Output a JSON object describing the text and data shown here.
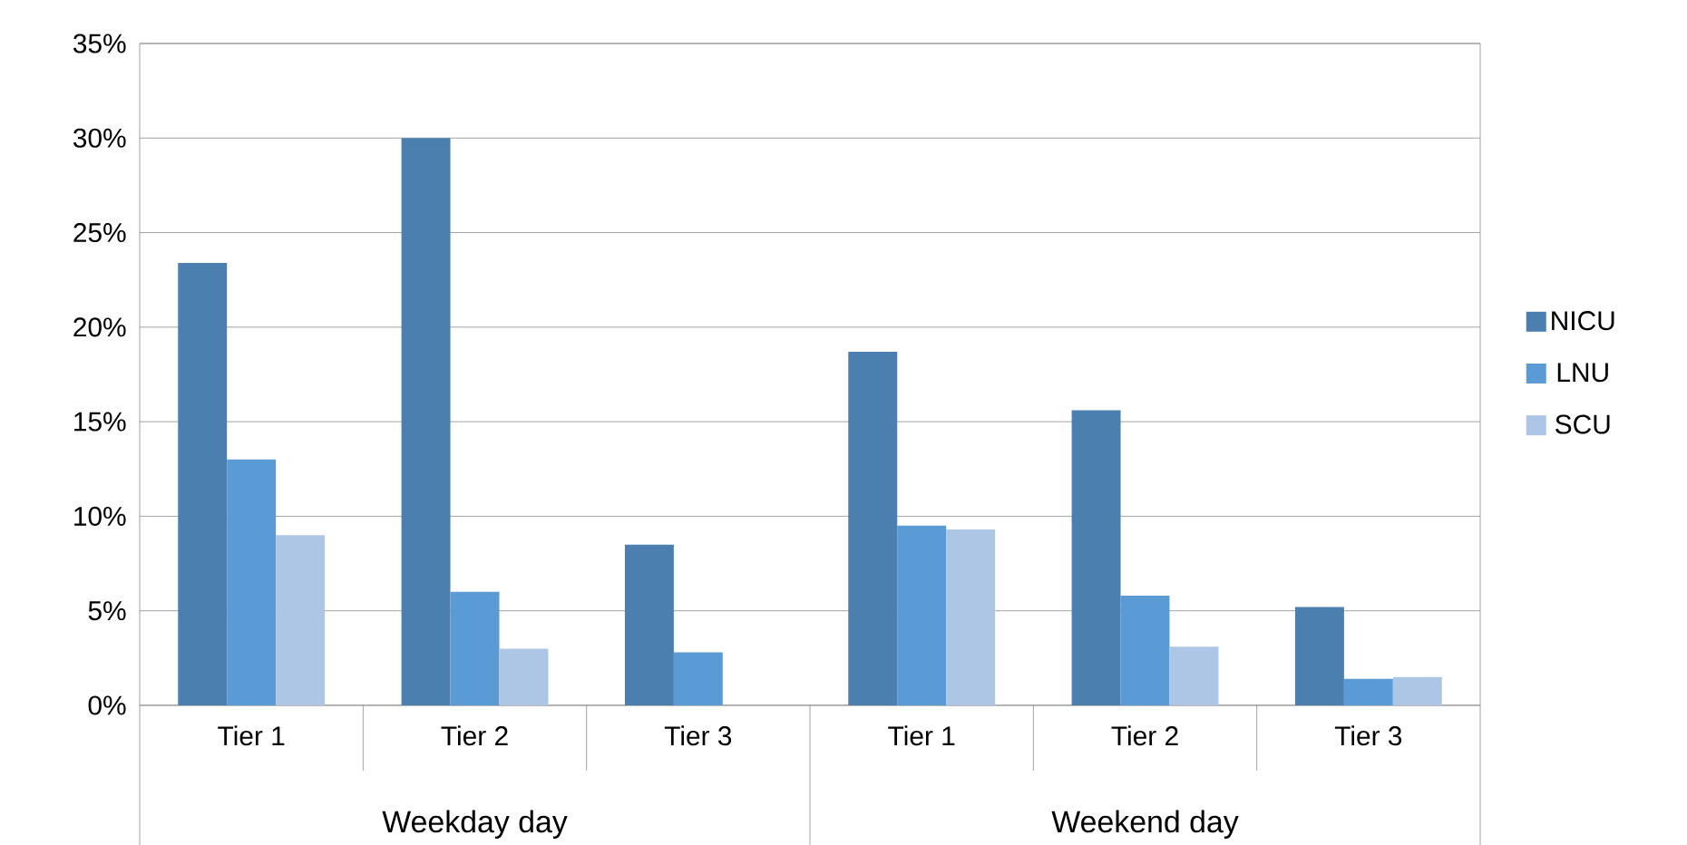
{
  "chart_data": {
    "type": "bar",
    "categories": [
      "Tier 1",
      "Tier 2",
      "Tier 3",
      "Tier 1",
      "Tier 2",
      "Tier 3"
    ],
    "series": [
      {
        "name": "NICU",
        "color": "#4a7fb0",
        "values": [
          23.4,
          30.0,
          8.5,
          18.7,
          15.6,
          5.2
        ]
      },
      {
        "name": "LNU",
        "color": "#5b9bd5",
        "values": [
          13.0,
          6.0,
          2.8,
          9.5,
          5.8,
          1.4
        ]
      },
      {
        "name": "SCU",
        "color": "#aec6e6",
        "values": [
          9.0,
          3.0,
          0,
          9.3,
          3.1,
          1.5
        ]
      }
    ],
    "ylim": [
      0,
      35
    ],
    "yticks": [
      {
        "value": 0,
        "label": "0%"
      },
      {
        "value": 5,
        "label": "5%"
      },
      {
        "value": 10,
        "label": "10%"
      },
      {
        "value": 15,
        "label": "15%"
      },
      {
        "value": 20,
        "label": "20%"
      },
      {
        "value": 25,
        "label": "25%"
      },
      {
        "value": 30,
        "label": "30%"
      },
      {
        "value": 35,
        "label": "35%"
      }
    ],
    "grid": "y",
    "legend": "right",
    "annotations": [
      "Weekday day",
      "Weekend day"
    ]
  }
}
